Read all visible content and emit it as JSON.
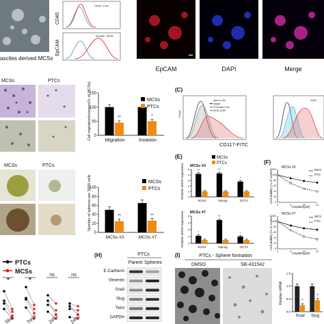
{
  "panelA": {
    "ascites_label": "ascites derived MCSs",
    "flow_y_labels": [
      "CD45",
      "EpCAM"
    ],
    "flow_tiny_text": [
      "CD45 + 0.4%",
      "EpCAM + 98.5%"
    ],
    "fluor_labels": [
      "EpCAM",
      "DAPI",
      "Merge"
    ]
  },
  "panelB": {
    "photo_labels": [
      "MCSs",
      "PTCs"
    ],
    "chart_ylabel": "Cell migration/invasion(% of MCSs)",
    "legend": [
      "MCSs",
      "PTCs"
    ],
    "stars": [
      "**",
      "*"
    ]
  },
  "panelC": {
    "letter": "(C)",
    "flow_ylabel": "Count",
    "legend_title": "cpan>cv (%)",
    "legend_items": [
      "Isotype",
      "PTCsumer 4.3%",
      "MCSs 32.8%"
    ],
    "legend2_title": "CD44+",
    "xlabel": "CD117-FITC"
  },
  "panelD": {
    "photo_labels": [
      "MCSs",
      "PTCs"
    ],
    "chart_ylabel": "Number of spheres per 3000 cells",
    "legend": [
      "MCSs",
      "PTCs"
    ],
    "stars": [
      "**",
      "**"
    ]
  },
  "panelE": {
    "letter": "(E)",
    "titles": [
      "MCSs #3",
      "MCSs #7"
    ],
    "ylabel": "Relative mRNA expression",
    "legend": [
      "MCSs",
      "PTCs"
    ],
    "stars": [
      "**",
      "**",
      "*",
      "*",
      "**",
      "*"
    ]
  },
  "panelF": {
    "letter": "(F)",
    "titles": [
      "MCSs #3",
      "MCSs #7"
    ],
    "ylabel": "Cell viability (% of control)",
    "xlabel": "Cisplatin(μM)",
    "legend": [
      "MCS",
      "PTC"
    ],
    "xticks": [
      "0",
      "8",
      "16",
      "24"
    ]
  },
  "panelG": {
    "legend": [
      "PTCs",
      "MCSs"
    ],
    "genes": [
      "Slug",
      "Twist",
      "Zeb1",
      "Zeb2"
    ],
    "sig": [
      "*",
      "*",
      "ns",
      "ns"
    ]
  },
  "panelH": {
    "letter": "(H)",
    "group": "PTCs",
    "cols": [
      "Parent",
      "Spheres"
    ],
    "rows": [
      "E-Cadherin",
      "Vimentin",
      "Snail",
      "Slug",
      "Twist",
      "GAPDH"
    ]
  },
  "panelI": {
    "letter": "(I)",
    "title": "PTCs - Sphere formation",
    "conditions": [
      "DMSO",
      "SB-431542"
    ],
    "ylabel": "Relative mRNA",
    "xcats": [
      "Snail",
      "Slug"
    ],
    "stars": [
      "*",
      "*"
    ]
  },
  "chart_data": [
    {
      "type": "bar",
      "id": "B",
      "categories": [
        "Migration",
        "Invasion"
      ],
      "series": [
        {
          "name": "MCSs",
          "values": [
            100,
            100
          ]
        },
        {
          "name": "PTCs",
          "values": [
            45,
            50
          ]
        }
      ],
      "ylabel": "Cell migration/invasion(% of MCSs)",
      "ylim": [
        0,
        150
      ],
      "yticks": [
        "0",
        "50",
        "100",
        "150"
      ]
    },
    {
      "type": "bar",
      "id": "D",
      "categories": [
        "MCSs #3",
        "MCSs #7"
      ],
      "series": [
        {
          "name": "MCSs",
          "values": [
            50,
            65
          ]
        },
        {
          "name": "PTCs",
          "values": [
            25,
            26
          ]
        }
      ],
      "ylabel": "Number of spheres per 3000 cells",
      "ylim": [
        0,
        100
      ],
      "yticks": [
        "0",
        "20",
        "40",
        "60",
        "80",
        "100"
      ]
    },
    {
      "type": "bar",
      "id": "E3",
      "categories": [
        "SOX2",
        "Nanog",
        "OCT4"
      ],
      "series": [
        {
          "name": "MCSs",
          "values": [
            4.2,
            4.3,
            2.8
          ]
        },
        {
          "name": "PTCs",
          "values": [
            1,
            1,
            1
          ]
        }
      ],
      "ylim": [
        0,
        5
      ],
      "yticks": [
        "0",
        "1",
        "2",
        "3",
        "4",
        "5"
      ]
    },
    {
      "type": "bar",
      "id": "E7",
      "categories": [
        "SOX2",
        "Nanog",
        "OCT4"
      ],
      "series": [
        {
          "name": "MCSs",
          "values": [
            2.2,
            6.8,
            2.0
          ]
        },
        {
          "name": "PTCs",
          "values": [
            1,
            1,
            1
          ]
        }
      ],
      "ylim": [
        0,
        8
      ],
      "yticks": [
        "0",
        "2",
        "4",
        "6",
        "8"
      ]
    },
    {
      "type": "line",
      "id": "F3",
      "x": [
        0,
        8,
        16,
        24
      ],
      "series": [
        {
          "name": "MCS",
          "values": [
            100,
            88,
            78,
            72
          ]
        },
        {
          "name": "PTC",
          "values": [
            100,
            70,
            50,
            40
          ]
        }
      ],
      "ylim": [
        0,
        120
      ],
      "yticks": [
        "0",
        "20",
        "40",
        "60",
        "80",
        "100",
        "120"
      ]
    },
    {
      "type": "line",
      "id": "F7",
      "x": [
        0,
        8,
        16,
        24
      ],
      "series": [
        {
          "name": "MCS",
          "values": [
            100,
            85,
            75,
            70
          ]
        },
        {
          "name": "PTC",
          "values": [
            100,
            68,
            45,
            35
          ]
        }
      ],
      "ylim": [
        0,
        120
      ],
      "yticks": [
        "0",
        "20",
        "40",
        "60",
        "80",
        "100",
        "120"
      ]
    },
    {
      "type": "bar",
      "id": "I",
      "categories": [
        "Snail",
        "Slug"
      ],
      "series": [
        {
          "name": "DMSO",
          "values": [
            1.0,
            1.0
          ]
        },
        {
          "name": "SB-431542",
          "values": [
            0.25,
            0.45
          ]
        }
      ],
      "ylabel": "Relative mRNA",
      "ylim": [
        0,
        1.5
      ],
      "yticks": [
        "0.0",
        "0.5",
        "1.0",
        "1.5"
      ]
    }
  ]
}
